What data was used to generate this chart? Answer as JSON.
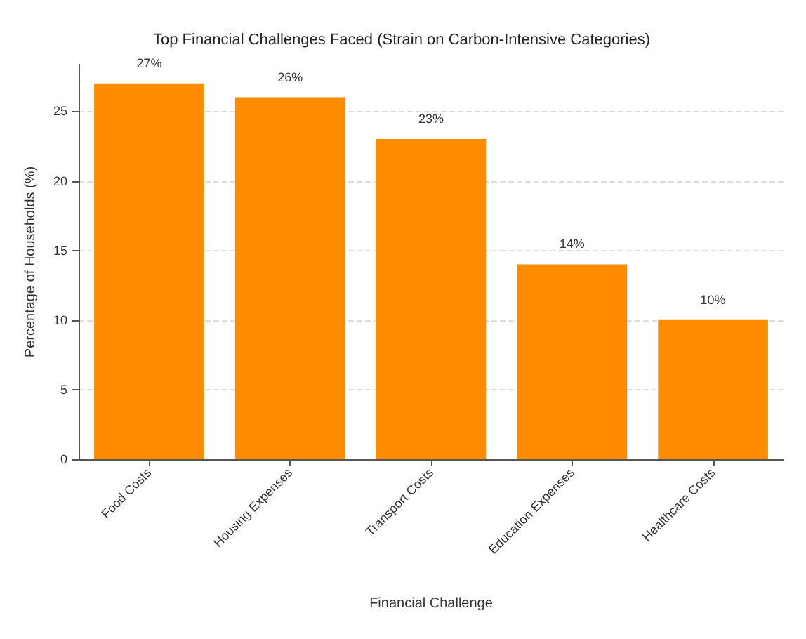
{
  "chart_data": {
    "type": "bar",
    "title": "Top Financial Challenges Faced (Strain on Carbon-Intensive Categories)",
    "xlabel": "Financial Challenge",
    "ylabel": "Percentage of Households (%)",
    "categories": [
      "Food Costs",
      "Housing Expenses",
      "Transport Costs",
      "Education Expenses",
      "Healthcare Costs"
    ],
    "values": [
      27,
      26,
      23,
      14,
      10
    ],
    "value_labels": [
      "27%",
      "26%",
      "23%",
      "14%",
      "10%"
    ],
    "color": "#ff8c00",
    "ylim": [
      0,
      28.35
    ],
    "yticks": [
      0,
      5,
      10,
      15,
      20,
      25
    ],
    "grid": "y"
  }
}
